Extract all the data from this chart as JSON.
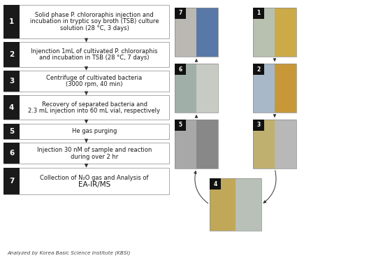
{
  "steps": [
    {
      "num": "1",
      "lines": [
        "Solid phase P. chlororaphis injection and",
        "incubation in tryptic soy broth (TSB) culture",
        "solution (28 °C, 3 days)"
      ]
    },
    {
      "num": "2",
      "lines": [
        "Injenction 1mL of cultivated P. chlororaphis",
        "and incubation in TSB (28 °C, 7 days)"
      ]
    },
    {
      "num": "3",
      "lines": [
        "Centrifuge of cultivated bacteria",
        "(3000 rpm, 40 min)"
      ]
    },
    {
      "num": "4",
      "lines": [
        "Recovery of separated bacteria and",
        "2.3 mL injection into 60 mL vial, respectively"
      ]
    },
    {
      "num": "5",
      "lines": [
        "He gas purging"
      ]
    },
    {
      "num": "6",
      "lines": [
        "Injection 30 nM of sample and reaction",
        "during over 2 hr"
      ]
    },
    {
      "num": "7",
      "lines": [
        "Collection of N₂O gas and Analysis of",
        "EA-IR/MS"
      ]
    }
  ],
  "footer": "Analyzed by Korea Basic Science Institute (KBSI)",
  "box_bg": "#ffffff",
  "box_border": "#aaaaaa",
  "num_bg": "#1a1a1a",
  "num_fg": "#ffffff",
  "arrow_color": "#333333",
  "text_color": "#1a1a1a",
  "label_bg": "#111111",
  "label_fg": "#ffffff",
  "photo_blocks": [
    {
      "label": "7",
      "col": 0,
      "row": 0,
      "color1": "#c8c4be",
      "color2": "#5a7aaa"
    },
    {
      "label": "6",
      "col": 0,
      "row": 1,
      "color1": "#aab8b0",
      "color2": "#c8cac8"
    },
    {
      "label": "5",
      "col": 0,
      "row": 2,
      "color1": "#b0b0b0",
      "color2": "#909090"
    },
    {
      "label": "4",
      "col": 1,
      "row": 3,
      "color1": "#c8b870",
      "color2": "#c0c8c0"
    },
    {
      "label": "1",
      "col": 2,
      "row": 0,
      "color1": "#c0c8b8",
      "color2": "#d4a840"
    },
    {
      "label": "2",
      "col": 2,
      "row": 1,
      "color1": "#b8c8d8",
      "color2": "#d4a040"
    },
    {
      "label": "3",
      "col": 2,
      "row": 2,
      "color1": "#c8b878",
      "color2": "#c0c0c0"
    }
  ]
}
